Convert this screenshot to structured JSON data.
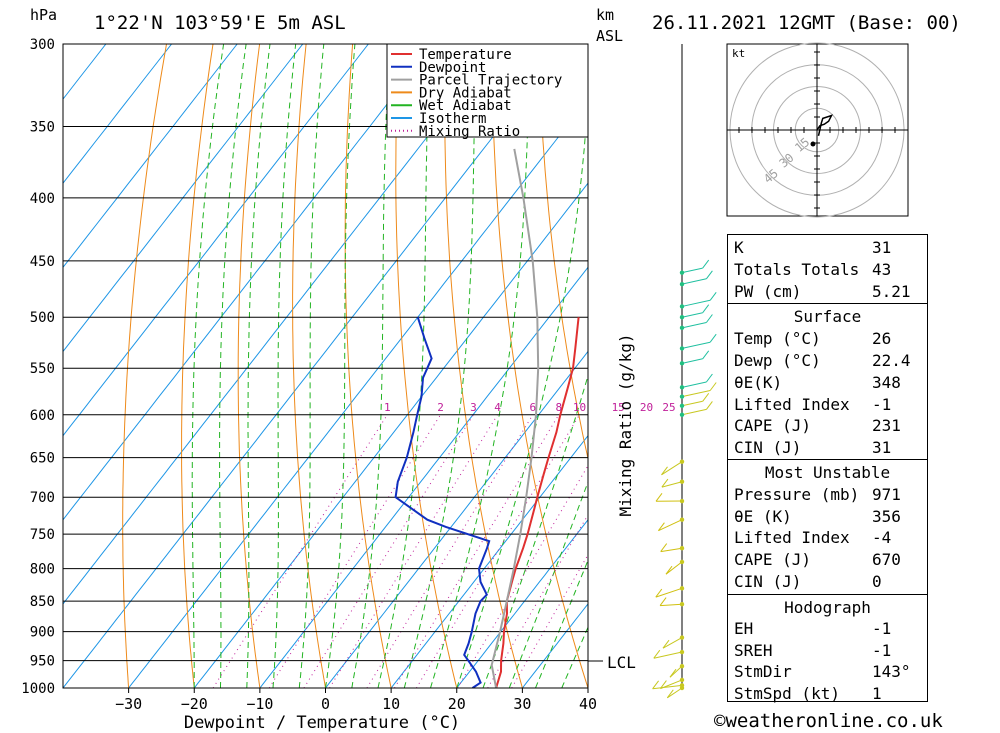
{
  "header": {
    "location": "1°22'N  103°59'E  5m  ASL",
    "datetime": "26.11.2021  12GMT  (Base: 00)",
    "pressure_unit": "hPa",
    "height_unit_top": "km",
    "height_unit_bottom": "ASL"
  },
  "footer": {
    "copyright": "©weatheronline.co.uk"
  },
  "chart_data": {
    "type": "line",
    "xlabel": "Dewpoint / Temperature (°C)",
    "ylabel": "hPa",
    "mixing_ratio_label": "Mixing Ratio (g/kg)",
    "x_ticks": [
      -30,
      -20,
      -10,
      0,
      10,
      20,
      30,
      40
    ],
    "pressure_levels": [
      300,
      350,
      400,
      450,
      500,
      550,
      600,
      650,
      700,
      750,
      800,
      850,
      900,
      950,
      1000
    ],
    "ylim": [
      1000,
      300
    ],
    "xlim_at_surface": [
      -40,
      40
    ],
    "mixing_ratio_values": [
      "1",
      "2",
      "3",
      "4",
      "6",
      "8",
      "10",
      "15",
      "20",
      "25"
    ],
    "legend": [
      "Temperature",
      "Dewpoint",
      "Parcel Trajectory",
      "Dry Adiabat",
      "Wet Adiabat",
      "Isotherm",
      "Mixing Ratio"
    ],
    "lcl_label": "LCL",
    "lcl_pressure": 958,
    "series": [
      {
        "name": "Temperature",
        "color": "#e03030",
        "p": [
          1000,
          970,
          950,
          920,
          900,
          870,
          850,
          820,
          800,
          770,
          750,
          720,
          700,
          670,
          650,
          620,
          600,
          570,
          550,
          530,
          500
        ],
        "t": [
          26,
          24.8,
          23.5,
          21.8,
          20.5,
          18.8,
          17.3,
          15.8,
          14.8,
          13.5,
          12.5,
          10.8,
          9.6,
          7.8,
          6.6,
          4.8,
          3.3,
          1.2,
          -0.3,
          -2.3,
          -5.5
        ]
      },
      {
        "name": "Dewpoint",
        "color": "#1030c0",
        "p": [
          1000,
          990,
          970,
          950,
          940,
          920,
          900,
          870,
          850,
          840,
          820,
          800,
          770,
          760,
          740,
          730,
          700,
          680,
          650,
          620,
          600,
          580,
          560,
          550,
          540,
          520,
          500
        ],
        "t": [
          22.4,
          23,
          21,
          18.5,
          17.2,
          16.5,
          15.6,
          14,
          13.3,
          13.5,
          11,
          9.2,
          8,
          7.5,
          -0.8,
          -4.5,
          -12,
          -13.5,
          -15,
          -17,
          -18.5,
          -20,
          -22,
          -22.5,
          -23,
          -26.5,
          -30
        ]
      },
      {
        "name": "Parcel Trajectory",
        "color": "#a0a0a0",
        "p": [
          1000,
          958,
          900,
          850,
          800,
          750,
          700,
          650,
          600,
          550,
          500,
          450,
          400,
          365
        ],
        "t": [
          26,
          22.6,
          19.9,
          17.3,
          14.5,
          11.4,
          7.9,
          4.0,
          -0.4,
          -5.6,
          -11.8,
          -19.2,
          -28.1,
          -35.3
        ]
      }
    ],
    "wind_barbs_at": [
      460,
      470,
      490,
      500,
      510,
      530,
      545,
      570,
      580,
      590,
      600,
      655,
      680,
      705,
      730,
      770,
      790,
      830,
      855,
      910,
      935,
      960,
      985,
      995,
      1000
    ],
    "hodograph": {
      "unit": "kt",
      "ring_labels": [
        "15",
        "30",
        "45"
      ],
      "path": [
        [
          0,
          0
        ],
        [
          2,
          3
        ],
        [
          5,
          4
        ],
        [
          8,
          6
        ],
        [
          10,
          10
        ],
        [
          4,
          8
        ],
        [
          3,
          5
        ],
        [
          1,
          -4
        ]
      ]
    }
  },
  "indices": {
    "k_label": "K",
    "k_value": "31",
    "tt_label": "Totals Totals",
    "tt_value": "43",
    "pw_label": "PW (cm)",
    "pw_value": "5.21",
    "surface_title": "Surface",
    "temp_label": "Temp (°C)",
    "temp_value": "26",
    "dewp_label": "Dewp (°C)",
    "dewp_value": "22.4",
    "thetae_label": "θE(K)",
    "thetae_value": "348",
    "li_label": "Lifted Index",
    "li_value": "-1",
    "cape_label": "CAPE (J)",
    "cape_value": "231",
    "cin_label": "CIN (J)",
    "cin_value": "31",
    "mu_title": "Most Unstable",
    "mu_pres_label": "Pressure (mb)",
    "mu_pres_value": "971",
    "mu_thetae_label": "θE (K)",
    "mu_thetae_value": "356",
    "mu_li_label": "Lifted Index",
    "mu_li_value": "-4",
    "mu_cape_label": "CAPE (J)",
    "mu_cape_value": "670",
    "mu_cin_label": "CIN (J)",
    "mu_cin_value": "0",
    "hodo_title": "Hodograph",
    "eh_label": "EH",
    "eh_value": "-1",
    "srh_label": "SREH",
    "srh_value": "-1",
    "stmdir_label": "StmDir",
    "stmdir_value": "143°",
    "stmspd_label": "StmSpd (kt)",
    "stmspd_value": "1"
  }
}
